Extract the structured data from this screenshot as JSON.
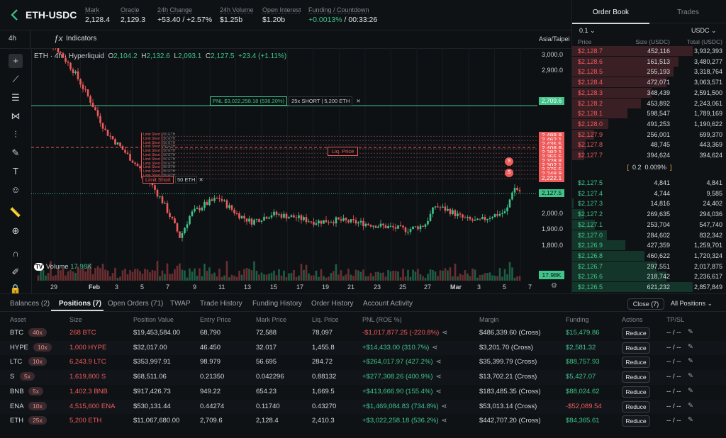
{
  "header": {
    "pair": "ETH-USDC",
    "stats": [
      {
        "label": "Mark",
        "value": "2,128.4",
        "color": "#e3e6e8"
      },
      {
        "label": "Oracle",
        "value": "2,129.3",
        "color": "#e3e6e8"
      },
      {
        "label": "24h Change",
        "value": "+53.40 / +2.57%",
        "color": "#3fc48a"
      },
      {
        "label": "24h Volume",
        "value": "$1.25b",
        "color": "#e3e6e8"
      },
      {
        "label": "Open Interest",
        "value": "$1.20b",
        "color": "#e3e6e8"
      }
    ],
    "funding_label": "Funding / Countdown",
    "funding_rate": "+0.0013%",
    "countdown": "/ 00:33:26"
  },
  "toolbar": {
    "interval": "4h",
    "indicators": "Indicators",
    "timezone": "Asia/Taipei"
  },
  "chart": {
    "legend_title": "ETH · 4h · Hyperliquid",
    "ohlc": {
      "o_label": "O",
      "o": "2,104.2",
      "h_label": "H",
      "h": "2,132.6",
      "l_label": "L",
      "l": "2,093.1",
      "c_label": "C",
      "c": "2,127.5",
      "change": "+23.4 (+1.11%)"
    },
    "volume_label": "Volume",
    "volume_value": "17.98K",
    "volume_tag": "17.98K",
    "current_price": "2,127.5",
    "pnl_label": "PNL $3,022,258.18 (536.20%)",
    "pnl_position": "25x SHORT | 5,200 ETH",
    "liq_label": "Liq. Price",
    "limit_order_label": "Limit Short",
    "limit_order_size": "50 ETH",
    "price_ticks": [
      "3,000.0",
      "2,900.0",
      "2,000.0",
      "1,900.0",
      "1,800.0"
    ],
    "order_tags": [
      "2,709.6",
      "2,488.8",
      "2,462.1",
      "2,435.5",
      "2,410.3",
      "2,408.8",
      "2,382.1",
      "2,355.5",
      "2,328.8",
      "2,302.1",
      "2,275.5",
      "2,248.8",
      "2,222.1"
    ],
    "time_ticks": [
      "29",
      "Feb",
      "3",
      "5",
      "7",
      "9",
      "11",
      "13",
      "15",
      "17",
      "19",
      "21",
      "23",
      "25",
      "27",
      "Mar",
      "3",
      "5",
      "7"
    ],
    "marker_s": "S"
  },
  "orderbook": {
    "tabs": [
      "Order Book",
      "Trades"
    ],
    "tick_size": "0.1",
    "currency": "USDC",
    "columns": [
      "Price",
      "Size (USDC)",
      "Total (USDC)"
    ],
    "asks": [
      {
        "p": "$2,128.7",
        "s": "452,116",
        "t": "3,932,393",
        "d": 1.0
      },
      {
        "p": "$2,128.6",
        "s": "161,513",
        "t": "3,480,277",
        "d": 0.88
      },
      {
        "p": "$2,128.5",
        "s": "255,193",
        "t": "3,318,764",
        "d": 0.84
      },
      {
        "p": "$2,128.4",
        "s": "472,071",
        "t": "3,063,571",
        "d": 0.78
      },
      {
        "p": "$2,128.3",
        "s": "348,439",
        "t": "2,591,500",
        "d": 0.66
      },
      {
        "p": "$2,128.2",
        "s": "453,892",
        "t": "2,243,061",
        "d": 0.57
      },
      {
        "p": "$2,128.1",
        "s": "598,547",
        "t": "1,789,169",
        "d": 0.46
      },
      {
        "p": "$2,128.0",
        "s": "491,253",
        "t": "1,190,622",
        "d": 0.3
      },
      {
        "p": "$2,127.9",
        "s": "256,001",
        "t": "699,370",
        "d": 0.18
      },
      {
        "p": "$2,127.8",
        "s": "48,745",
        "t": "443,369",
        "d": 0.11
      },
      {
        "p": "$2,127.7",
        "s": "394,624",
        "t": "394,624",
        "d": 0.1
      }
    ],
    "spread": {
      "value": "0.2",
      "pct": "0.009%"
    },
    "bids": [
      {
        "p": "$2,127.5",
        "s": "4,841",
        "t": "4,841",
        "d": 0.0
      },
      {
        "p": "$2,127.4",
        "s": "4,744",
        "t": "9,585",
        "d": 0.0
      },
      {
        "p": "$2,127.3",
        "s": "14,816",
        "t": "24,402",
        "d": 0.01
      },
      {
        "p": "$2,127.2",
        "s": "269,635",
        "t": "294,036",
        "d": 0.1
      },
      {
        "p": "$2,127.1",
        "s": "253,704",
        "t": "547,740",
        "d": 0.19
      },
      {
        "p": "$2,127.0",
        "s": "284,602",
        "t": "832,342",
        "d": 0.29
      },
      {
        "p": "$2,126.9",
        "s": "427,359",
        "t": "1,259,701",
        "d": 0.44
      },
      {
        "p": "$2,126.8",
        "s": "460,622",
        "t": "1,720,324",
        "d": 0.6
      },
      {
        "p": "$2,126.7",
        "s": "297,551",
        "t": "2,017,875",
        "d": 0.7
      },
      {
        "p": "$2,126.6",
        "s": "218,742",
        "t": "2,236,617",
        "d": 0.78
      },
      {
        "p": "$2,126.5",
        "s": "621,232",
        "t": "2,857,849",
        "d": 1.0
      }
    ]
  },
  "positions_panel": {
    "tabs": [
      "Balances (2)",
      "Positions (7)",
      "Open Orders (71)",
      "TWAP",
      "Trade History",
      "Funding History",
      "Order History",
      "Account Activity"
    ],
    "close_button": "Close (7)",
    "filter": "All Positions",
    "columns": [
      "Asset",
      "Size",
      "Position Value",
      "Entry Price",
      "Mark Price",
      "Liq. Price",
      "PNL (ROE %)",
      "Margin",
      "Funding",
      "Actions",
      "TP/SL"
    ],
    "reduce_label": "Reduce",
    "tpsl_value": "-- / --",
    "rows": [
      {
        "asset": "BTC",
        "lev": "40x",
        "size": "268 BTC",
        "value": "$19,453,584.00",
        "entry": "68,790",
        "mark": "72,588",
        "liq": "78,097",
        "pnl": "-$1,017,877.25 (-220.8%)",
        "pnl_pos": false,
        "margin": "$486,339.60 (Cross)",
        "funding": "$15,479.86",
        "funding_pos": true
      },
      {
        "asset": "HYPE",
        "lev": "10x",
        "size": "1,000 HYPE",
        "value": "$32,017.00",
        "entry": "46.450",
        "mark": "32.017",
        "liq": "1,455.8",
        "pnl": "+$14,433.00 (310.7%)",
        "pnl_pos": true,
        "margin": "$3,201.70 (Cross)",
        "funding": "$2,581.32",
        "funding_pos": true
      },
      {
        "asset": "LTC",
        "lev": "10x",
        "size": "6,243.9 LTC",
        "value": "$353,997.91",
        "entry": "98.979",
        "mark": "56.695",
        "liq": "284.72",
        "pnl": "+$264,017.97 (427.2%)",
        "pnl_pos": true,
        "margin": "$35,399.79 (Cross)",
        "funding": "$88,757.93",
        "funding_pos": true
      },
      {
        "asset": "S",
        "lev": "5x",
        "size": "1,619,800 S",
        "value": "$68,511.06",
        "entry": "0.21350",
        "mark": "0.042296",
        "liq": "0.88132",
        "pnl": "+$277,308.26 (400.9%)",
        "pnl_pos": true,
        "margin": "$13,702.21 (Cross)",
        "funding": "$5,427.07",
        "funding_pos": true
      },
      {
        "asset": "BNB",
        "lev": "5x",
        "size": "1,402.3 BNB",
        "value": "$917,426.73",
        "entry": "949.22",
        "mark": "654.23",
        "liq": "1,669.5",
        "pnl": "+$413,666.90 (155.4%)",
        "pnl_pos": true,
        "margin": "$183,485.35 (Cross)",
        "funding": "$88,024.62",
        "funding_pos": true
      },
      {
        "asset": "ENA",
        "lev": "10x",
        "size": "4,515,600 ENA",
        "value": "$530,131.44",
        "entry": "0.44274",
        "mark": "0.11740",
        "liq": "0.43270",
        "pnl": "+$1,469,084.83 (734.8%)",
        "pnl_pos": true,
        "margin": "$53,013.14 (Cross)",
        "funding": "-$52,089.54",
        "funding_pos": false
      },
      {
        "asset": "ETH",
        "lev": "25x",
        "size": "5,200 ETH",
        "value": "$11,067,680.00",
        "entry": "2,709.6",
        "mark": "2,128.4",
        "liq": "2,410.3",
        "pnl": "+$3,022,258.18 (536.2%)",
        "pnl_pos": true,
        "margin": "$442,707.20 (Cross)",
        "funding": "$84,365.61",
        "funding_pos": true
      }
    ]
  },
  "colors": {
    "up": "#3fc48a",
    "down": "#ef5b5b",
    "bg": "#0e1114",
    "accent": "#3fc48a"
  }
}
